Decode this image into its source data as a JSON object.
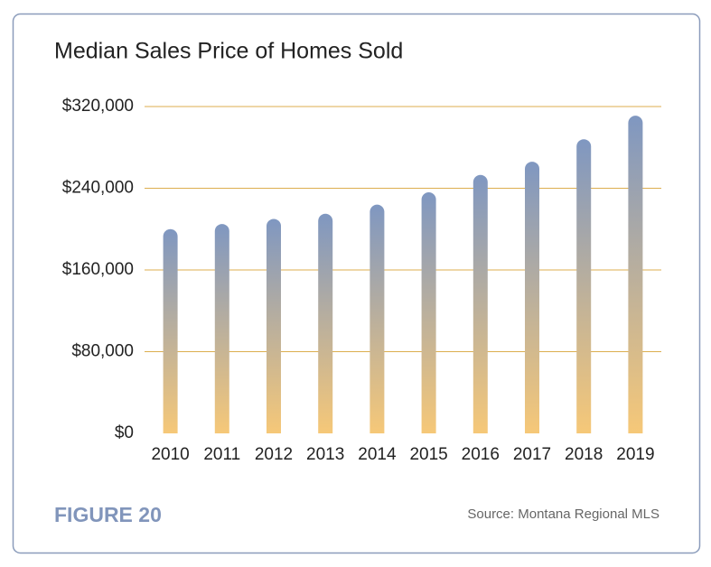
{
  "chart_data": {
    "type": "bar",
    "title": "Median Sales Price of Homes Sold",
    "categories": [
      "2010",
      "2011",
      "2012",
      "2013",
      "2014",
      "2015",
      "2016",
      "2017",
      "2018",
      "2019"
    ],
    "values": [
      200000,
      205000,
      210000,
      215000,
      224000,
      236000,
      253000,
      266000,
      288000,
      311000
    ],
    "ylim": [
      0,
      320000
    ],
    "yticks": [
      {
        "value": 0,
        "label": "$0"
      },
      {
        "value": 80000,
        "label": "$80,000"
      },
      {
        "value": 160000,
        "label": "$160,000"
      },
      {
        "value": 240000,
        "label": "$240,000"
      },
      {
        "value": 320000,
        "label": "$320,000"
      }
    ],
    "grid": true,
    "grid_color": "#dcae4f",
    "color_top": "#7f97c1",
    "color_bottom": "#f6c878",
    "figure_label": "FIGURE 20",
    "source": "Source: Montana Regional MLS"
  }
}
